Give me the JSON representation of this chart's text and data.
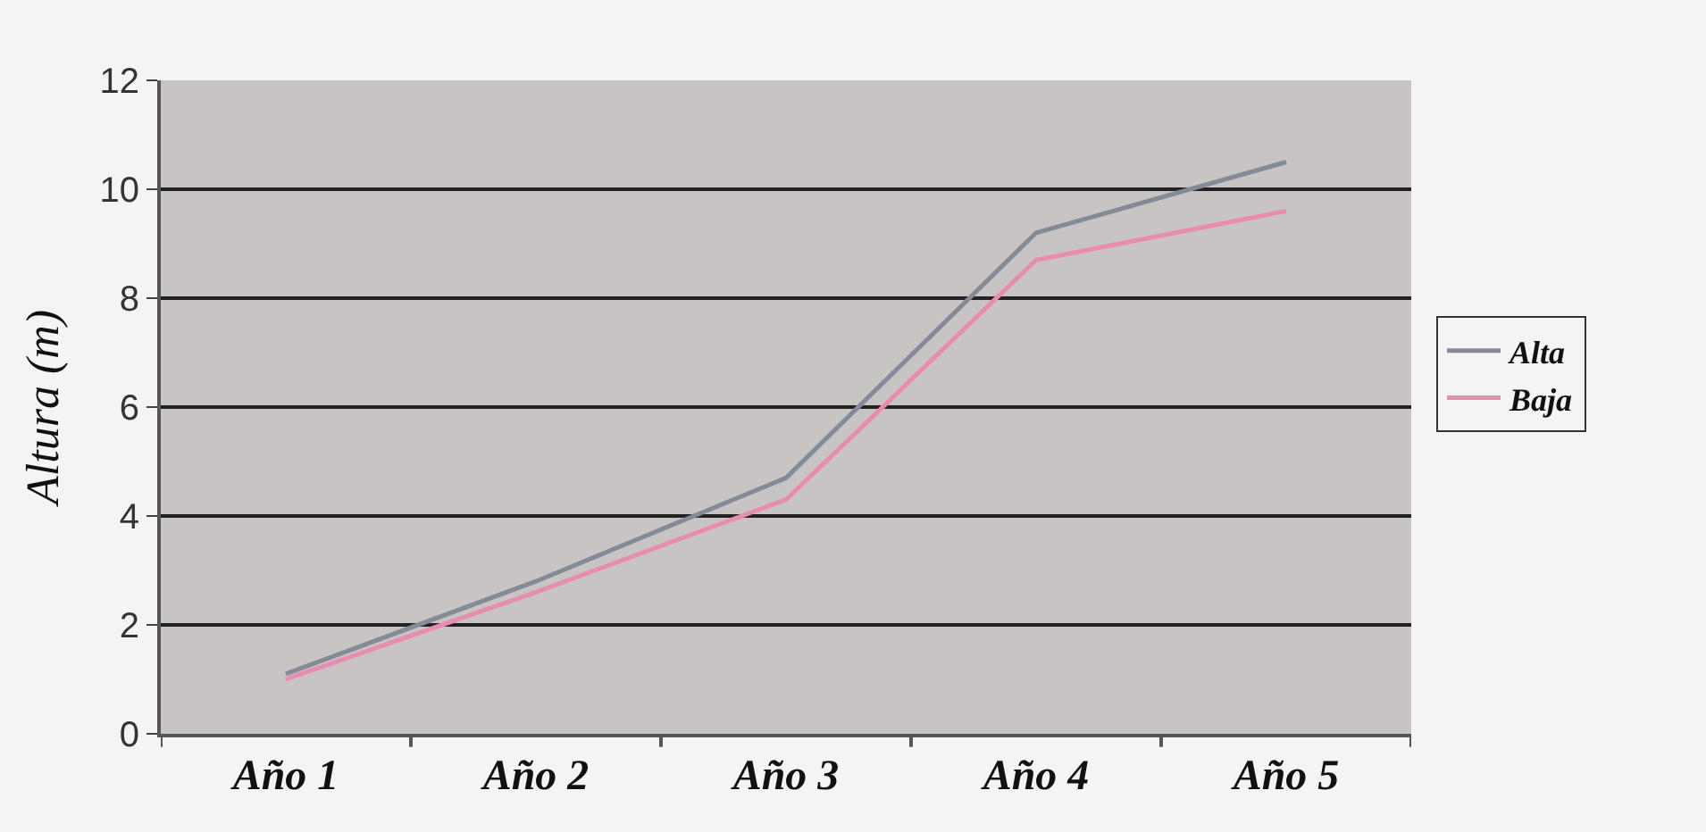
{
  "chart_data": {
    "type": "line",
    "ylabel": "Altura (m)",
    "categories": [
      "Año 1",
      "Año 2",
      "Año 3",
      "Año 4",
      "Año 5"
    ],
    "series": [
      {
        "name": "Alta",
        "color": "#858a98",
        "values": [
          1.1,
          2.8,
          4.7,
          9.2,
          10.5
        ]
      },
      {
        "name": "Baja",
        "color": "#e88cb0",
        "values": [
          1.0,
          2.6,
          4.3,
          8.7,
          9.6
        ]
      }
    ],
    "ylim": [
      0,
      12
    ],
    "yticks": [
      0,
      2,
      4,
      6,
      8,
      10,
      12
    ],
    "grid": "y",
    "legend": "right",
    "marker": "none",
    "line_style": "solid"
  }
}
